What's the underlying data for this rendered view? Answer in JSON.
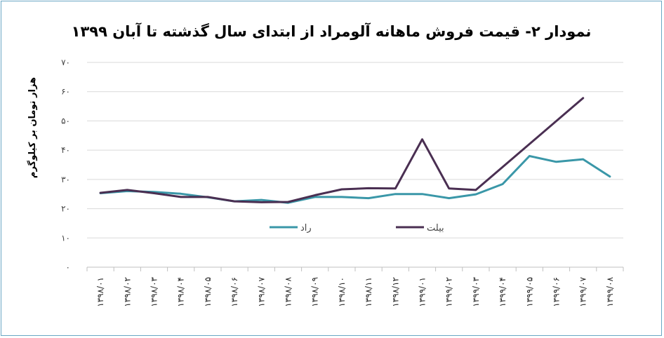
{
  "chart_data": {
    "type": "line",
    "title": "نمودار ۲- قیمت فروش ماهانه آلومراد از ابتدای سال گذشته تا آبان ۱۳۹۹",
    "ylabel": "هزار تومان بر کیلوگرم",
    "xlabel": "",
    "ylim": [
      0,
      70
    ],
    "yticks": [
      "۰",
      "۱۰",
      "۲۰",
      "۳۰",
      "۴۰",
      "۵۰",
      "۶۰",
      "۷۰"
    ],
    "y_tick_values": [
      0,
      10,
      20,
      30,
      40,
      50,
      60,
      70
    ],
    "grid": true,
    "legend_position": "inside-bottom",
    "categories": [
      "۱۳۹۸/۰۱",
      "۱۳۹۸/۰۲",
      "۱۳۹۸/۰۳",
      "۱۳۹۸/۰۴",
      "۱۳۹۸/۰۵",
      "۱۳۹۸/۰۶",
      "۱۳۹۸/۰۷",
      "۱۳۹۸/۰۸",
      "۱۳۹۸/۰۹",
      "۱۳۹۸/۱۰",
      "۱۳۹۸/۱۱",
      "۱۳۹۸/۱۲",
      "۱۳۹۹/۰۱",
      "۱۳۹۹/۰۲",
      "۱۳۹۹/۰۳",
      "۱۳۹۹/۰۴",
      "۱۳۹۹/۰۵",
      "۱۳۹۹/۰۶",
      "۱۳۹۹/۰۷",
      "۱۳۹۹/۰۸"
    ],
    "series": [
      {
        "name": "راد",
        "color": "#3a97a8",
        "values": [
          25.3,
          26.0,
          25.7,
          25.1,
          23.9,
          22.5,
          23.0,
          22.0,
          24.0,
          24.0,
          23.6,
          25.0,
          25.0,
          23.6,
          24.9,
          28.4,
          38.0,
          36.0,
          36.9,
          31.0
        ]
      },
      {
        "name": "بیلت",
        "color": "#4a2f52",
        "values": [
          25.4,
          26.4,
          25.3,
          24.0,
          24.0,
          22.5,
          22.2,
          22.3,
          24.6,
          26.6,
          27.0,
          26.9,
          43.7,
          26.9,
          26.4,
          null,
          null,
          null,
          57.8,
          null
        ]
      }
    ]
  }
}
